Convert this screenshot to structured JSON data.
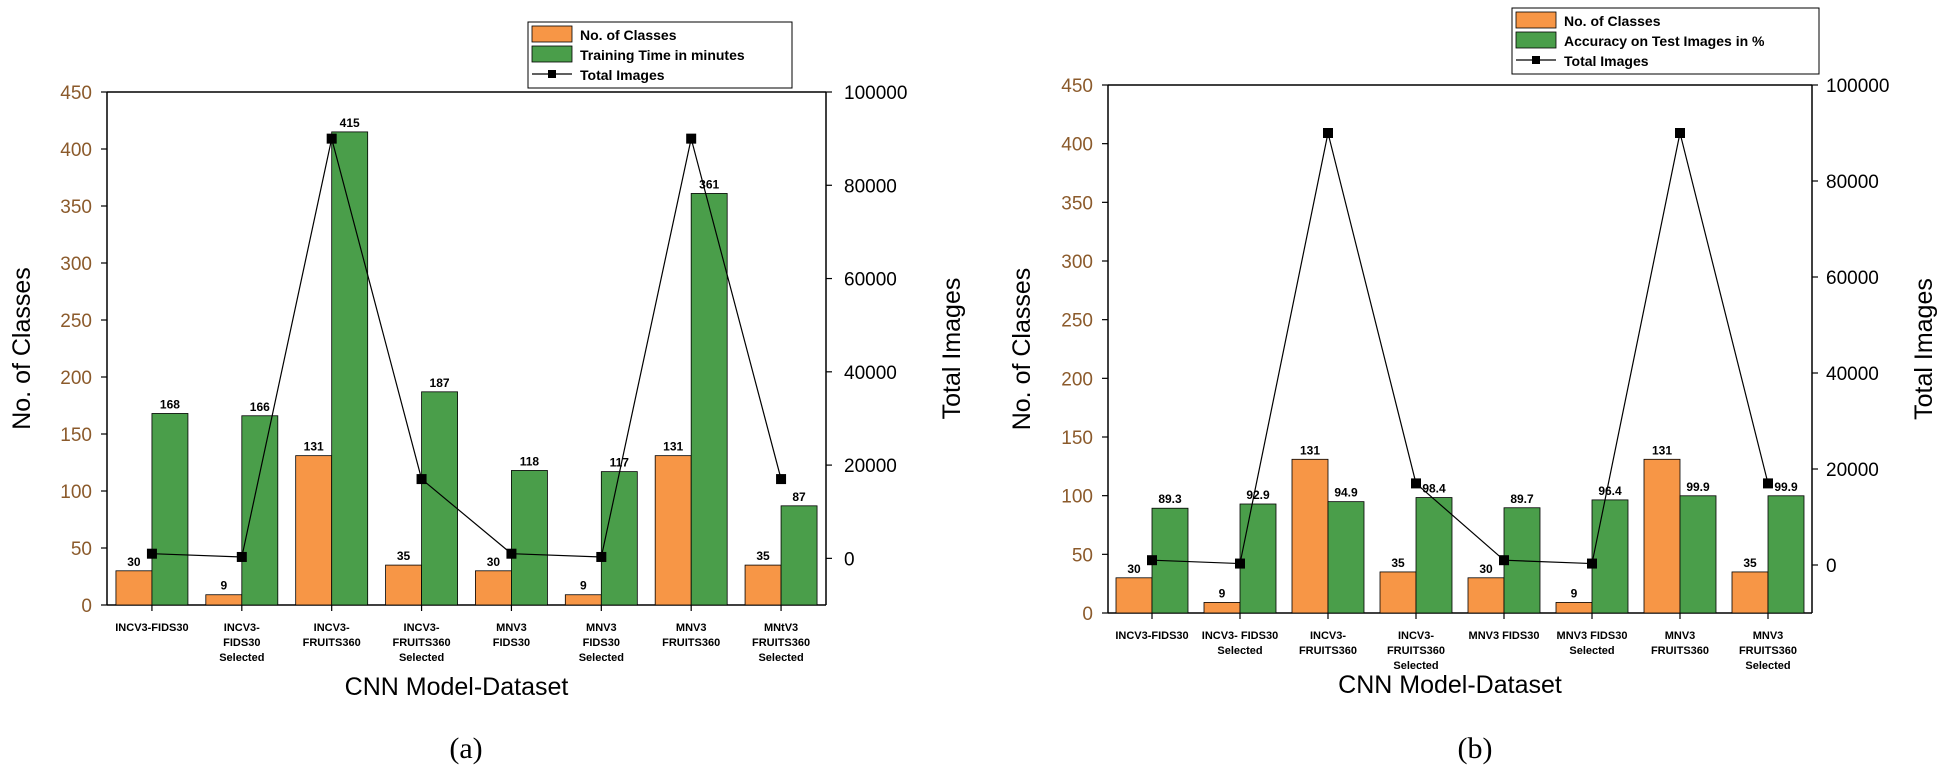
{
  "chart_data": [
    {
      "type": "bar",
      "panel_label": "(a)",
      "xlabel": "CNN Model-Dataset",
      "ylabel": "No. of Classes",
      "y2label": "Total Images",
      "ylim": [
        0,
        450
      ],
      "y2lim": [
        -10000,
        100000
      ],
      "yticks": [
        0,
        50,
        100,
        150,
        200,
        250,
        300,
        350,
        400,
        450
      ],
      "y2ticks": [
        0,
        20000,
        40000,
        60000,
        80000,
        100000
      ],
      "categories": [
        [
          "INCV3-FIDS30"
        ],
        [
          "INCV3-",
          "FIDS30",
          "Selected"
        ],
        [
          "INCV3-",
          "FRUITS360"
        ],
        [
          "INCV3-",
          "FRUITS360",
          "Selected"
        ],
        [
          "MNV3",
          "FIDS30"
        ],
        [
          "MNV3",
          "FIDS30",
          "Selected"
        ],
        [
          "MNV3",
          "FRUITS360"
        ],
        [
          "MNtV3",
          "FRUITS360",
          "Selected"
        ]
      ],
      "series": [
        {
          "name": "No. of Classes",
          "kind": "bar",
          "color": "#f79646",
          "values": [
            30,
            9,
            131,
            35,
            30,
            9,
            131,
            35
          ],
          "labels": [
            "30",
            "9",
            "131",
            "35",
            "30",
            "9",
            "131",
            "35"
          ]
        },
        {
          "name": "Training Time in minutes",
          "kind": "bar",
          "color": "#4a9e4a",
          "values": [
            168,
            166,
            415,
            187,
            118,
            117,
            361,
            87
          ],
          "labels": [
            "168",
            "166",
            "415",
            "187",
            "118",
            "117",
            "361",
            "87"
          ]
        },
        {
          "name": "Total Images",
          "kind": "line",
          "axis": "right",
          "color": "#000000",
          "values": [
            1000,
            300,
            90000,
            17000,
            1000,
            300,
            90000,
            17000
          ]
        }
      ],
      "legend_position": "top-right"
    },
    {
      "type": "bar",
      "panel_label": "(b)",
      "xlabel": "CNN Model-Dataset",
      "ylabel": "No. of Classes",
      "y2label": "Total Images",
      "ylim": [
        0,
        450
      ],
      "y2lim": [
        -10000,
        100000
      ],
      "yticks": [
        0,
        50,
        100,
        150,
        200,
        250,
        300,
        350,
        400,
        450
      ],
      "y2ticks": [
        0,
        20000,
        40000,
        60000,
        80000,
        100000
      ],
      "categories": [
        [
          "INCV3-FIDS30"
        ],
        [
          "INCV3- FIDS30",
          "Selected"
        ],
        [
          "INCV3-",
          "FRUITS360"
        ],
        [
          "INCV3-",
          "FRUITS360",
          "Selected"
        ],
        [
          "MNV3 FIDS30"
        ],
        [
          "MNV3 FIDS30",
          "Selected"
        ],
        [
          "MNV3",
          "FRUITS360"
        ],
        [
          "MNV3",
          "FRUITS360",
          "Selected"
        ]
      ],
      "series": [
        {
          "name": "No. of Classes",
          "kind": "bar",
          "color": "#f79646",
          "values": [
            30,
            9,
            131,
            35,
            30,
            9,
            131,
            35
          ],
          "labels": [
            "30",
            "9",
            "131",
            "35",
            "30",
            "9",
            "131",
            "35"
          ]
        },
        {
          "name": "Accuracy on Test Images in %",
          "kind": "bar",
          "color": "#4a9e4a",
          "values": [
            89.3,
            92.9,
            94.9,
            98.4,
            89.7,
            96.4,
            99.9,
            99.9
          ],
          "labels": [
            "89.3",
            "92.9",
            "94.9",
            "98.4",
            "89.7",
            "96.4",
            "99.9",
            "99.9"
          ]
        },
        {
          "name": "Total Images",
          "kind": "line",
          "axis": "right",
          "color": "#000000",
          "values": [
            1000,
            300,
            90000,
            17000,
            1000,
            300,
            90000,
            17000
          ]
        }
      ],
      "legend_position": "top-right"
    }
  ]
}
